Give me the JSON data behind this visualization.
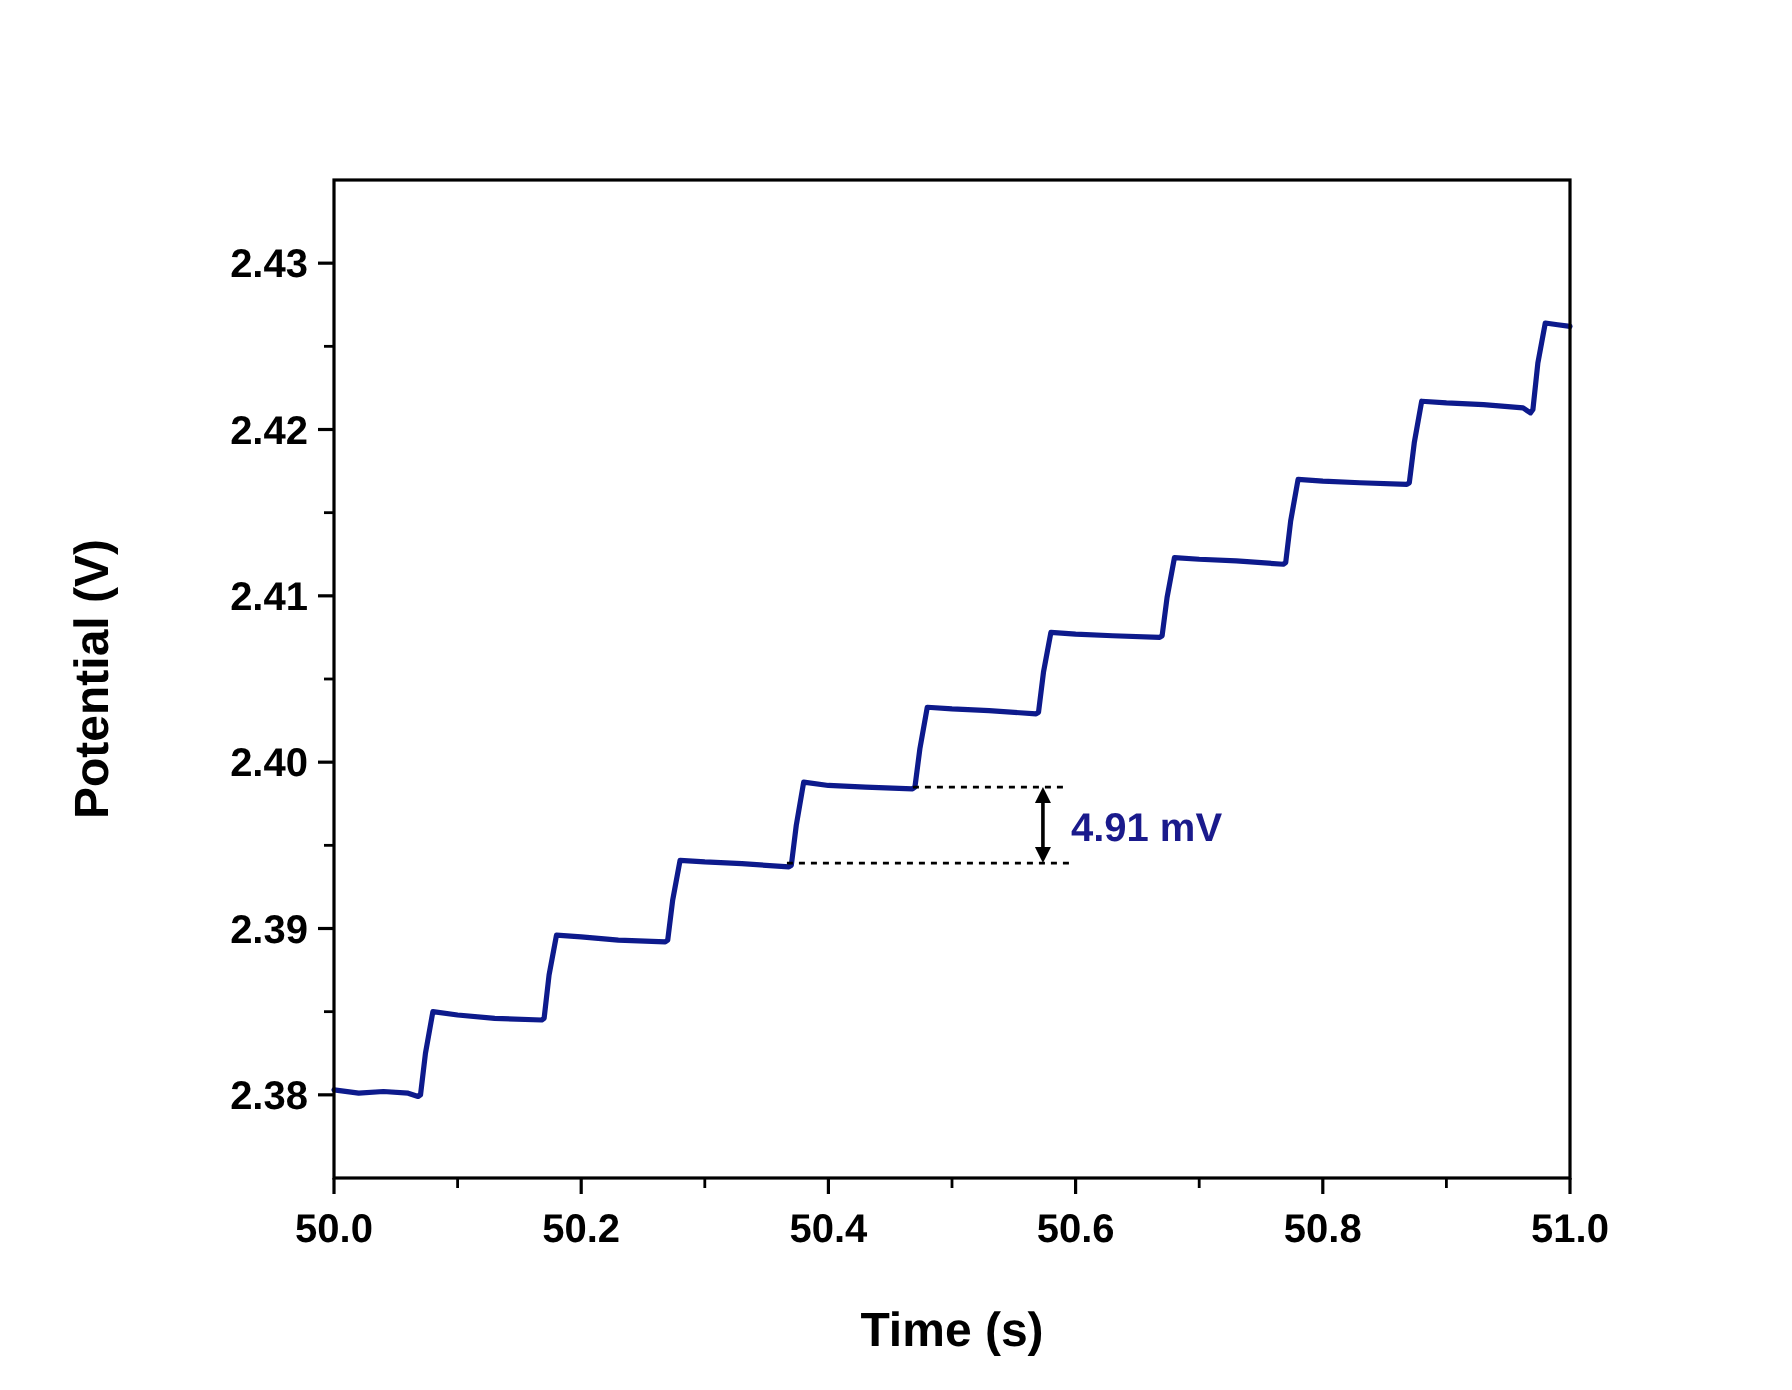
{
  "chart_data": {
    "type": "line",
    "xlabel": "Time (s)",
    "ylabel": "Potential (V)",
    "xlim": [
      50.0,
      51.0
    ],
    "xticks": [
      {
        "value": 50,
        "label": "50.0"
      },
      50.2,
      50.4,
      50.6,
      50.8,
      {
        "value": 51,
        "label": "51.0"
      }
    ],
    "ylim": [
      2.375,
      2.435
    ],
    "yticks": [
      {
        "value": 2.38,
        "label": "2.38"
      },
      {
        "value": 2.39,
        "label": "2.39"
      },
      {
        "value": 2.4,
        "label": "2.40"
      },
      {
        "value": 2.41,
        "label": "2.41"
      },
      {
        "value": 2.42,
        "label": "2.42"
      },
      {
        "value": 2.43,
        "label": "2.43"
      }
    ],
    "grid": false,
    "marker": "none",
    "line_style": "solid",
    "annotations": [
      {
        "text": "4.91 mV",
        "x": 50.47,
        "y": 2.3985
      }
    ],
    "series": [
      {
        "color": "#0d1a8c",
        "x": [
          50.0,
          50.02,
          50.04,
          50.06,
          50.068,
          50.07,
          50.074,
          50.08,
          50.1,
          50.13,
          50.168,
          50.17,
          50.174,
          50.18,
          50.2,
          50.23,
          50.268,
          50.27,
          50.274,
          50.28,
          50.3,
          50.33,
          50.368,
          50.37,
          50.374,
          50.38,
          50.4,
          50.43,
          50.468,
          50.47,
          50.474,
          50.48,
          50.5,
          50.53,
          50.568,
          50.57,
          50.574,
          50.58,
          50.6,
          50.63,
          50.668,
          50.67,
          50.674,
          50.68,
          50.7,
          50.73,
          50.768,
          50.77,
          50.774,
          50.78,
          50.8,
          50.83,
          50.868,
          50.87,
          50.874,
          50.88,
          50.9,
          50.93,
          50.962,
          50.968,
          50.97,
          50.974,
          50.98,
          50.99,
          51.0
        ],
        "values": [
          2.3803,
          2.3801,
          2.3802,
          2.3801,
          2.3799,
          2.38,
          2.3825,
          2.385,
          2.3848,
          2.3846,
          2.3845,
          2.3846,
          2.3872,
          2.3896,
          2.3895,
          2.3893,
          2.3892,
          2.3893,
          2.3917,
          2.3941,
          2.394,
          2.3939,
          2.3937,
          2.3938,
          2.3962,
          2.3988,
          2.3986,
          2.3985,
          2.3984,
          2.3985,
          2.4008,
          2.4033,
          2.4032,
          2.4031,
          2.4029,
          2.403,
          2.4054,
          2.4078,
          2.4077,
          2.4076,
          2.4075,
          2.4076,
          2.4099,
          2.4123,
          2.4122,
          2.4121,
          2.4119,
          2.412,
          2.4145,
          2.417,
          2.4169,
          2.4168,
          2.4167,
          2.4168,
          2.4192,
          2.4217,
          2.4216,
          2.4215,
          2.4213,
          2.421,
          2.4212,
          2.424,
          2.4264,
          2.4263,
          2.4262
        ]
      }
    ]
  }
}
